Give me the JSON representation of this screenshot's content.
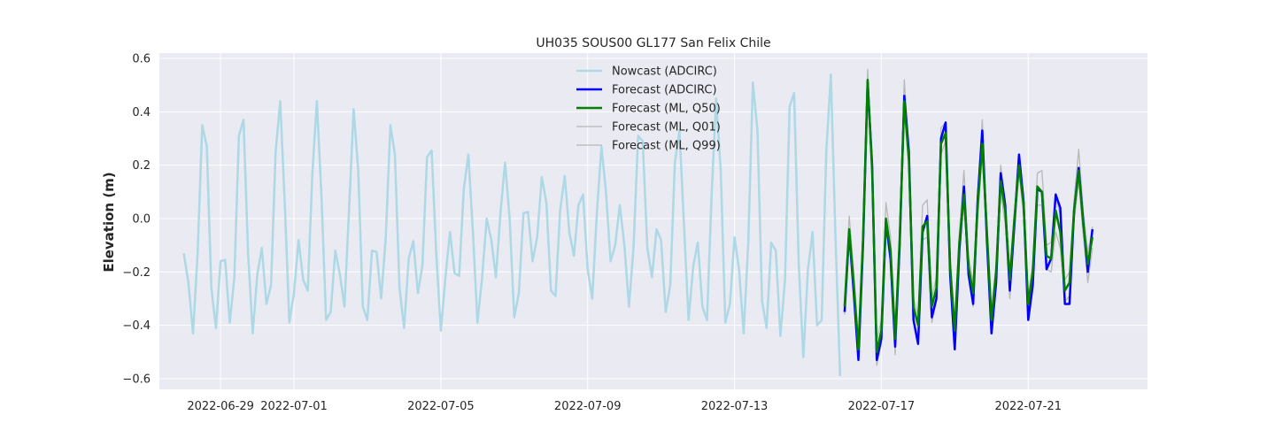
{
  "chart_data": {
    "type": "line",
    "title": "UH035 SOUS00 GL177 San Felix Chile",
    "xlabel": "",
    "ylabel": "Elevation (m)",
    "xlim": [
      "2022-06-27T08:00",
      "2022-07-24T06:00"
    ],
    "ylim": [
      -0.64,
      0.62
    ],
    "x_ticks": [
      "2022-06-29",
      "2022-07-01",
      "2022-07-05",
      "2022-07-09",
      "2022-07-13",
      "2022-07-17",
      "2022-07-21"
    ],
    "y_ticks": [
      -0.6,
      -0.4,
      -0.2,
      0.0,
      0.2,
      0.4,
      0.6
    ],
    "y_tick_labels": [
      "−0.6",
      "−0.4",
      "−0.2",
      "0.0",
      "0.2",
      "0.4",
      "0.6"
    ],
    "grid": true,
    "legend_position": "top-center",
    "background": "#eaeaf2",
    "series": [
      {
        "name": "Nowcast (ADCIRC)",
        "color": "#add8e6",
        "x": [
          "2022-06-28T00:00",
          "2022-06-28T03:00",
          "2022-06-28T06:00",
          "2022-06-28T09:00",
          "2022-06-28T12:00",
          "2022-06-28T15:00",
          "2022-06-28T18:00",
          "2022-06-28T21:00",
          "2022-06-29T00:00",
          "2022-06-29T03:00",
          "2022-06-29T06:00",
          "2022-06-29T09:00",
          "2022-06-29T12:00",
          "2022-06-29T15:00",
          "2022-06-29T18:00",
          "2022-06-29T21:00",
          "2022-06-30T00:00",
          "2022-06-30T03:00",
          "2022-06-30T06:00",
          "2022-06-30T09:00",
          "2022-06-30T12:00",
          "2022-06-30T15:00",
          "2022-06-30T18:00",
          "2022-06-30T21:00",
          "2022-07-01T00:00",
          "2022-07-01T03:00",
          "2022-07-01T06:00",
          "2022-07-01T09:00",
          "2022-07-01T12:00",
          "2022-07-01T15:00",
          "2022-07-01T18:00",
          "2022-07-01T21:00",
          "2022-07-02T00:00",
          "2022-07-02T03:00",
          "2022-07-02T06:00",
          "2022-07-02T09:00",
          "2022-07-02T12:00",
          "2022-07-02T15:00",
          "2022-07-02T18:00",
          "2022-07-02T21:00",
          "2022-07-03T00:00",
          "2022-07-03T03:00",
          "2022-07-03T06:00",
          "2022-07-03T09:00",
          "2022-07-03T12:00",
          "2022-07-03T15:00",
          "2022-07-03T18:00",
          "2022-07-03T21:00",
          "2022-07-04T00:00",
          "2022-07-04T03:00",
          "2022-07-04T06:00",
          "2022-07-04T09:00",
          "2022-07-04T12:00",
          "2022-07-04T15:00",
          "2022-07-04T18:00",
          "2022-07-04T21:00",
          "2022-07-05T00:00",
          "2022-07-05T03:00",
          "2022-07-05T06:00",
          "2022-07-05T09:00",
          "2022-07-05T12:00",
          "2022-07-05T15:00",
          "2022-07-05T18:00",
          "2022-07-05T21:00",
          "2022-07-06T00:00",
          "2022-07-06T03:00",
          "2022-07-06T06:00",
          "2022-07-06T09:00",
          "2022-07-06T12:00",
          "2022-07-06T15:00",
          "2022-07-06T18:00",
          "2022-07-06T21:00",
          "2022-07-07T00:00",
          "2022-07-07T03:00",
          "2022-07-07T06:00",
          "2022-07-07T09:00",
          "2022-07-07T12:00",
          "2022-07-07T15:00",
          "2022-07-07T18:00",
          "2022-07-07T21:00",
          "2022-07-08T00:00",
          "2022-07-08T03:00",
          "2022-07-08T06:00",
          "2022-07-08T09:00",
          "2022-07-08T12:00",
          "2022-07-08T15:00",
          "2022-07-08T18:00",
          "2022-07-08T21:00",
          "2022-07-09T00:00",
          "2022-07-09T03:00",
          "2022-07-09T06:00",
          "2022-07-09T09:00",
          "2022-07-09T12:00",
          "2022-07-09T15:00",
          "2022-07-09T18:00",
          "2022-07-09T21:00",
          "2022-07-10T00:00",
          "2022-07-10T03:00",
          "2022-07-10T06:00",
          "2022-07-10T09:00",
          "2022-07-10T12:00",
          "2022-07-10T15:00",
          "2022-07-10T18:00",
          "2022-07-10T21:00",
          "2022-07-11T00:00",
          "2022-07-11T03:00",
          "2022-07-11T06:00",
          "2022-07-11T09:00",
          "2022-07-11T12:00",
          "2022-07-11T15:00",
          "2022-07-11T18:00",
          "2022-07-11T21:00",
          "2022-07-12T00:00",
          "2022-07-12T03:00",
          "2022-07-12T06:00",
          "2022-07-12T09:00",
          "2022-07-12T12:00",
          "2022-07-12T15:00",
          "2022-07-12T18:00",
          "2022-07-12T21:00",
          "2022-07-13T00:00",
          "2022-07-13T03:00",
          "2022-07-13T06:00",
          "2022-07-13T09:00",
          "2022-07-13T12:00",
          "2022-07-13T15:00",
          "2022-07-13T18:00",
          "2022-07-13T21:00",
          "2022-07-14T00:00",
          "2022-07-14T03:00",
          "2022-07-14T06:00",
          "2022-07-14T09:00",
          "2022-07-14T12:00",
          "2022-07-14T15:00",
          "2022-07-14T18:00",
          "2022-07-14T21:00",
          "2022-07-15T00:00",
          "2022-07-15T03:00",
          "2022-07-15T06:00",
          "2022-07-15T09:00",
          "2022-07-15T12:00",
          "2022-07-15T15:00",
          "2022-07-15T18:00",
          "2022-07-15T21:00"
        ],
        "y": [
          -0.13,
          -0.24,
          -0.43,
          -0.13,
          0.35,
          0.27,
          -0.26,
          -0.41,
          -0.16,
          -0.155,
          -0.39,
          -0.22,
          0.31,
          0.37,
          -0.13,
          -0.43,
          -0.21,
          -0.11,
          -0.32,
          -0.25,
          0.25,
          0.44,
          0.05,
          -0.39,
          -0.28,
          -0.08,
          -0.23,
          -0.27,
          0.17,
          0.44,
          0.08,
          -0.38,
          -0.35,
          -0.12,
          -0.21,
          -0.33,
          0.03,
          0.41,
          0.18,
          -0.33,
          -0.38,
          -0.12,
          -0.125,
          -0.3,
          -0.07,
          0.35,
          0.24,
          -0.26,
          -0.41,
          -0.15,
          -0.085,
          -0.28,
          -0.175,
          0.23,
          0.255,
          -0.13,
          -0.42,
          -0.22,
          -0.05,
          -0.205,
          -0.215,
          0.11,
          0.24,
          -0.05,
          -0.39,
          -0.22,
          0.0,
          -0.08,
          -0.22,
          0.02,
          0.21,
          0.0,
          -0.37,
          -0.28,
          0.02,
          0.025,
          -0.16,
          -0.07,
          0.155,
          0.06,
          -0.27,
          -0.29,
          0.03,
          0.16,
          -0.05,
          -0.14,
          0.05,
          0.09,
          -0.19,
          -0.3,
          0.02,
          0.27,
          0.1,
          -0.16,
          -0.1,
          0.05,
          -0.1,
          -0.33,
          -0.11,
          0.31,
          0.29,
          -0.11,
          -0.22,
          -0.04,
          -0.08,
          -0.35,
          -0.25,
          0.21,
          0.33,
          -0.03,
          -0.38,
          -0.18,
          -0.09,
          -0.33,
          -0.38,
          0.08,
          0.45,
          0.18,
          -0.39,
          -0.32,
          -0.07,
          -0.19,
          -0.43,
          -0.09,
          0.51,
          0.33,
          -0.31,
          -0.41,
          -0.09,
          -0.12,
          -0.44,
          -0.23,
          0.42,
          0.47,
          -0.17,
          -0.52,
          -0.19,
          -0.05,
          -0.4,
          -0.38,
          0.25,
          0.54,
          -0.07,
          -0.59
        ]
      },
      {
        "name": "Forecast (ADCIRC)",
        "color": "#0000ff",
        "x": [
          "2022-07-16T00:00",
          "2022-07-16T03:00",
          "2022-07-16T06:00",
          "2022-07-16T09:00",
          "2022-07-16T12:00",
          "2022-07-16T15:00",
          "2022-07-16T18:00",
          "2022-07-16T21:00",
          "2022-07-17T00:00",
          "2022-07-17T03:00",
          "2022-07-17T06:00",
          "2022-07-17T09:00",
          "2022-07-17T12:00",
          "2022-07-17T15:00",
          "2022-07-17T18:00",
          "2022-07-17T21:00",
          "2022-07-18T00:00",
          "2022-07-18T03:00",
          "2022-07-18T06:00",
          "2022-07-18T09:00",
          "2022-07-18T12:00",
          "2022-07-18T15:00",
          "2022-07-18T18:00",
          "2022-07-18T21:00",
          "2022-07-19T00:00",
          "2022-07-19T03:00",
          "2022-07-19T06:00",
          "2022-07-19T09:00",
          "2022-07-19T12:00",
          "2022-07-19T15:00",
          "2022-07-19T18:00",
          "2022-07-19T21:00",
          "2022-07-20T00:00",
          "2022-07-20T03:00",
          "2022-07-20T06:00",
          "2022-07-20T09:00",
          "2022-07-20T12:00",
          "2022-07-20T15:00",
          "2022-07-20T18:00",
          "2022-07-20T21:00",
          "2022-07-21T00:00",
          "2022-07-21T03:00",
          "2022-07-21T06:00",
          "2022-07-21T09:00",
          "2022-07-21T12:00",
          "2022-07-21T15:00",
          "2022-07-21T18:00",
          "2022-07-21T21:00",
          "2022-07-22T00:00",
          "2022-07-22T03:00",
          "2022-07-22T06:00",
          "2022-07-22T09:00",
          "2022-07-22T12:00",
          "2022-07-22T15:00",
          "2022-07-22T18:00"
        ],
        "y": [
          -0.35,
          -0.05,
          -0.28,
          -0.53,
          -0.1,
          0.51,
          0.2,
          -0.53,
          -0.45,
          -0.01,
          -0.15,
          -0.48,
          -0.1,
          0.46,
          0.25,
          -0.38,
          -0.47,
          -0.05,
          0.01,
          -0.37,
          -0.3,
          0.3,
          0.36,
          -0.21,
          -0.49,
          -0.12,
          0.12,
          -0.21,
          -0.32,
          0.07,
          0.33,
          -0.08,
          -0.43,
          -0.24,
          0.17,
          0.05,
          -0.27,
          -0.02,
          0.24,
          0.06,
          -0.38,
          -0.25,
          0.11,
          0.1,
          -0.19,
          -0.15,
          0.09,
          0.04,
          -0.32,
          -0.32,
          0.03,
          0.19,
          -0.01,
          -0.2,
          -0.04
        ]
      },
      {
        "name": "Forecast (ML, Q50)",
        "color": "#008000",
        "x": [
          "2022-07-16T00:00",
          "2022-07-16T03:00",
          "2022-07-16T06:00",
          "2022-07-16T09:00",
          "2022-07-16T12:00",
          "2022-07-16T15:00",
          "2022-07-16T18:00",
          "2022-07-16T21:00",
          "2022-07-17T00:00",
          "2022-07-17T03:00",
          "2022-07-17T06:00",
          "2022-07-17T09:00",
          "2022-07-17T12:00",
          "2022-07-17T15:00",
          "2022-07-17T18:00",
          "2022-07-17T21:00",
          "2022-07-18T00:00",
          "2022-07-18T03:00",
          "2022-07-18T06:00",
          "2022-07-18T09:00",
          "2022-07-18T12:00",
          "2022-07-18T15:00",
          "2022-07-18T18:00",
          "2022-07-18T21:00",
          "2022-07-19T00:00",
          "2022-07-19T03:00",
          "2022-07-19T06:00",
          "2022-07-19T09:00",
          "2022-07-19T12:00",
          "2022-07-19T15:00",
          "2022-07-19T18:00",
          "2022-07-19T21:00",
          "2022-07-20T00:00",
          "2022-07-20T03:00",
          "2022-07-20T06:00",
          "2022-07-20T09:00",
          "2022-07-20T12:00",
          "2022-07-20T15:00",
          "2022-07-20T18:00",
          "2022-07-20T21:00",
          "2022-07-21T00:00",
          "2022-07-21T03:00",
          "2022-07-21T06:00",
          "2022-07-21T09:00",
          "2022-07-21T12:00",
          "2022-07-21T15:00",
          "2022-07-21T18:00",
          "2022-07-21T21:00",
          "2022-07-22T00:00",
          "2022-07-22T03:00",
          "2022-07-22T06:00",
          "2022-07-22T09:00",
          "2022-07-22T12:00",
          "2022-07-22T15:00",
          "2022-07-22T18:00"
        ],
        "y": [
          -0.33,
          -0.04,
          -0.25,
          -0.49,
          -0.08,
          0.52,
          0.18,
          -0.5,
          -0.42,
          0.0,
          -0.12,
          -0.45,
          -0.08,
          0.44,
          0.22,
          -0.33,
          -0.4,
          -0.03,
          -0.01,
          -0.33,
          -0.26,
          0.28,
          0.32,
          -0.18,
          -0.42,
          -0.09,
          0.09,
          -0.18,
          -0.28,
          0.05,
          0.28,
          -0.05,
          -0.38,
          -0.2,
          0.14,
          0.03,
          -0.23,
          0.0,
          0.2,
          0.05,
          -0.32,
          -0.2,
          0.12,
          0.1,
          -0.14,
          -0.15,
          0.03,
          -0.05,
          -0.27,
          -0.24,
          0.03,
          0.18,
          -0.02,
          -0.17,
          -0.07
        ]
      },
      {
        "name": "Forecast (ML, Q01)",
        "color": "#b8b8b8",
        "x": [
          "2022-07-16T00:00",
          "2022-07-16T03:00",
          "2022-07-16T06:00",
          "2022-07-16T09:00",
          "2022-07-16T12:00",
          "2022-07-16T15:00",
          "2022-07-16T18:00",
          "2022-07-16T21:00",
          "2022-07-17T00:00",
          "2022-07-17T03:00",
          "2022-07-17T06:00",
          "2022-07-17T09:00",
          "2022-07-17T12:00",
          "2022-07-17T15:00",
          "2022-07-17T18:00",
          "2022-07-17T21:00",
          "2022-07-18T00:00",
          "2022-07-18T03:00",
          "2022-07-18T06:00",
          "2022-07-18T09:00",
          "2022-07-18T12:00",
          "2022-07-18T15:00",
          "2022-07-18T18:00",
          "2022-07-18T21:00",
          "2022-07-19T00:00",
          "2022-07-19T03:00",
          "2022-07-19T06:00",
          "2022-07-19T09:00",
          "2022-07-19T12:00",
          "2022-07-19T15:00",
          "2022-07-19T18:00",
          "2022-07-19T21:00",
          "2022-07-20T00:00",
          "2022-07-20T03:00",
          "2022-07-20T06:00",
          "2022-07-20T09:00",
          "2022-07-20T12:00",
          "2022-07-20T15:00",
          "2022-07-20T18:00",
          "2022-07-20T21:00",
          "2022-07-21T00:00",
          "2022-07-21T03:00",
          "2022-07-21T06:00",
          "2022-07-21T09:00",
          "2022-07-21T12:00",
          "2022-07-21T15:00",
          "2022-07-21T18:00",
          "2022-07-21T21:00",
          "2022-07-22T00:00",
          "2022-07-22T03:00",
          "2022-07-22T06:00",
          "2022-07-22T09:00",
          "2022-07-22T12:00",
          "2022-07-22T15:00",
          "2022-07-22T18:00"
        ],
        "y": [
          -0.36,
          -0.08,
          -0.3,
          -0.52,
          -0.12,
          0.49,
          0.15,
          -0.55,
          -0.47,
          -0.04,
          -0.17,
          -0.51,
          -0.12,
          0.41,
          0.19,
          -0.38,
          -0.46,
          -0.08,
          -0.07,
          -0.39,
          -0.31,
          0.24,
          0.29,
          -0.22,
          -0.47,
          -0.13,
          0.05,
          -0.22,
          -0.33,
          0.0,
          0.24,
          -0.09,
          -0.43,
          -0.25,
          0.1,
          -0.02,
          -0.3,
          -0.05,
          0.17,
          0.01,
          -0.37,
          -0.24,
          0.05,
          0.05,
          -0.19,
          -0.2,
          -0.05,
          -0.11,
          -0.31,
          -0.29,
          -0.01,
          0.14,
          -0.06,
          -0.24,
          -0.11
        ]
      },
      {
        "name": "Forecast (ML, Q99)",
        "color": "#b8b8b8",
        "x": [
          "2022-07-16T00:00",
          "2022-07-16T03:00",
          "2022-07-16T06:00",
          "2022-07-16T09:00",
          "2022-07-16T12:00",
          "2022-07-16T15:00",
          "2022-07-16T18:00",
          "2022-07-16T21:00",
          "2022-07-17T00:00",
          "2022-07-17T03:00",
          "2022-07-17T06:00",
          "2022-07-17T09:00",
          "2022-07-17T12:00",
          "2022-07-17T15:00",
          "2022-07-17T18:00",
          "2022-07-17T21:00",
          "2022-07-18T00:00",
          "2022-07-18T03:00",
          "2022-07-18T06:00",
          "2022-07-18T09:00",
          "2022-07-18T12:00",
          "2022-07-18T15:00",
          "2022-07-18T18:00",
          "2022-07-18T21:00",
          "2022-07-19T00:00",
          "2022-07-19T03:00",
          "2022-07-19T06:00",
          "2022-07-19T09:00",
          "2022-07-19T12:00",
          "2022-07-19T15:00",
          "2022-07-19T18:00",
          "2022-07-19T21:00",
          "2022-07-20T00:00",
          "2022-07-20T03:00",
          "2022-07-20T06:00",
          "2022-07-20T09:00",
          "2022-07-20T12:00",
          "2022-07-20T15:00",
          "2022-07-20T18:00",
          "2022-07-20T21:00",
          "2022-07-21T00:00",
          "2022-07-21T03:00",
          "2022-07-21T06:00",
          "2022-07-21T09:00",
          "2022-07-21T12:00",
          "2022-07-21T15:00",
          "2022-07-21T18:00",
          "2022-07-21T21:00",
          "2022-07-22T00:00",
          "2022-07-22T03:00",
          "2022-07-22T06:00",
          "2022-07-22T09:00",
          "2022-07-22T12:00",
          "2022-07-22T15:00",
          "2022-07-22T18:00"
        ],
        "y": [
          -0.3,
          0.01,
          -0.2,
          -0.45,
          -0.03,
          0.56,
          0.22,
          -0.46,
          -0.38,
          0.06,
          -0.07,
          -0.41,
          -0.04,
          0.52,
          0.26,
          -0.3,
          -0.36,
          0.05,
          0.07,
          -0.3,
          -0.22,
          0.34,
          0.36,
          -0.14,
          -0.39,
          -0.05,
          0.18,
          -0.14,
          -0.24,
          0.1,
          0.37,
          -0.01,
          -0.34,
          -0.17,
          0.2,
          0.07,
          -0.2,
          0.03,
          0.24,
          0.09,
          -0.29,
          -0.17,
          0.17,
          0.18,
          -0.1,
          -0.09,
          0.09,
          0.01,
          -0.23,
          -0.2,
          0.07,
          0.26,
          0.03,
          -0.13,
          -0.03
        ]
      }
    ]
  }
}
